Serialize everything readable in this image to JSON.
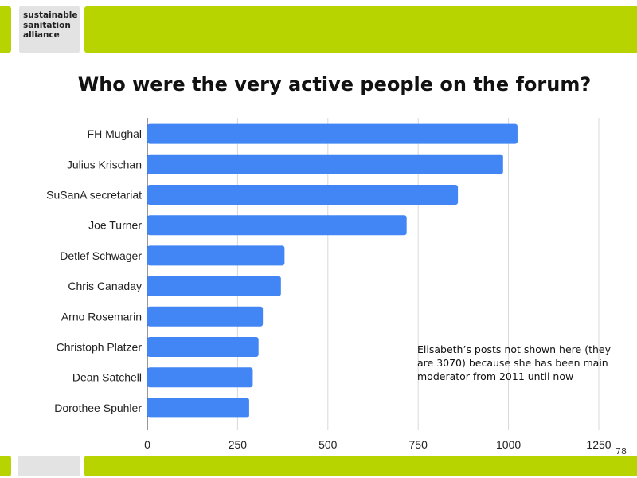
{
  "logo": {
    "text": "sustainable\nsanitation\nalliance"
  },
  "slide": {
    "title": "Who were the very active people on the forum?",
    "page_number": "78"
  },
  "note": {
    "text": "Elisabeth’s posts not shown here (they are 3070) because she has been main moderator from 2011 until now"
  },
  "colors": {
    "accent": "#b7d300",
    "bar": "#4285f4",
    "grid": "#d9d9d9",
    "logo_bg": "#e3e3e3"
  },
  "chart_data": {
    "type": "bar",
    "orientation": "horizontal",
    "title": "",
    "xlabel": "",
    "ylabel": "",
    "categories": [
      "FH Mughal",
      "Julius Krischan",
      "SuSanA secretariat",
      "Joe Turner",
      "Detlef Schwager",
      "Chris Canaday",
      "Arno Rosemarin",
      "Christoph Platzer",
      "Dean Satchell",
      "Dorothee Spuhler"
    ],
    "values": [
      1025,
      985,
      860,
      718,
      380,
      370,
      320,
      308,
      292,
      282
    ],
    "xlim": [
      0,
      1250
    ],
    "xticks": [
      0,
      250,
      500,
      750,
      1000,
      1250
    ],
    "grid": true,
    "legend": "none"
  }
}
